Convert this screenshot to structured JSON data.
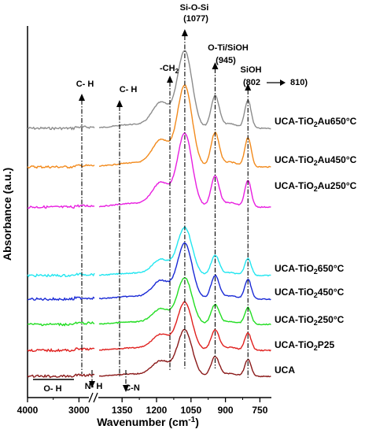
{
  "chart_data": {
    "type": "line",
    "xlabel_main": "Wavenumber (cm",
    "xlabel_sup": "-1",
    "xlabel_end": ")",
    "ylabel": "Absorbance (a.u.)",
    "x_ticks": [
      "4000",
      "3000",
      "1350",
      "1200",
      "1050",
      "900",
      "750"
    ],
    "x_segments": [
      {
        "from": 4000,
        "to": 2700
      },
      {
        "from": 1450,
        "to": 700
      }
    ],
    "annotations": {
      "sioSi": "Si-O-Si",
      "sioSi_val": "(1077)",
      "oti": "O-Ti/SiOH",
      "oti_val": "(945)",
      "sioh": "SiOH",
      "sioh_val": "(802",
      "sioh_shift": "810)",
      "ch2_main": "-CH",
      "ch2_sub": "2",
      "ch_a": "C- H",
      "ch_b": "C- H",
      "nh": "N- H",
      "cn": "C-N",
      "oh": "O- H"
    },
    "series": [
      {
        "name_pre": "UCA-TiO",
        "name_sub": "2",
        "name_post": "Au650°C",
        "color": "#8c8c8c",
        "baseline": 0.0,
        "amp": 1.0
      },
      {
        "name_pre": "UCA-TiO",
        "name_sub": "2",
        "name_post": "Au450°C",
        "color": "#f28a1c",
        "baseline": 1.0,
        "amp": 1.05
      },
      {
        "name_pre": "UCA-TiO",
        "name_sub": "2",
        "name_post": "Au250°C",
        "color": "#e81ee0",
        "baseline": 2.0,
        "amp": 0.95
      },
      {
        "name_pre": "UCA-TiO",
        "name_sub": "2",
        "name_post": "650°C",
        "color": "#22e6f0",
        "baseline": 3.0,
        "amp": 0.62
      },
      {
        "name_pre": "UCA-TiO",
        "name_sub": "2",
        "name_post": "450°C",
        "color": "#1a2ad6",
        "baseline": 4.0,
        "amp": 0.72
      },
      {
        "name_pre": "UCA-TiO",
        "name_sub": "2",
        "name_post": "250°C",
        "color": "#22dd22",
        "baseline": 5.0,
        "amp": 0.6
      },
      {
        "name_pre": "UCA-TiO",
        "name_sub": "2",
        "name_post": "P25",
        "color": "#e0201e",
        "baseline": 6.0,
        "amp": 0.62
      },
      {
        "name_pre": "UCA",
        "name_sub": "",
        "name_post": "",
        "color": "#8b1a1a",
        "baseline": 7.0,
        "amp": 0.6
      }
    ]
  }
}
